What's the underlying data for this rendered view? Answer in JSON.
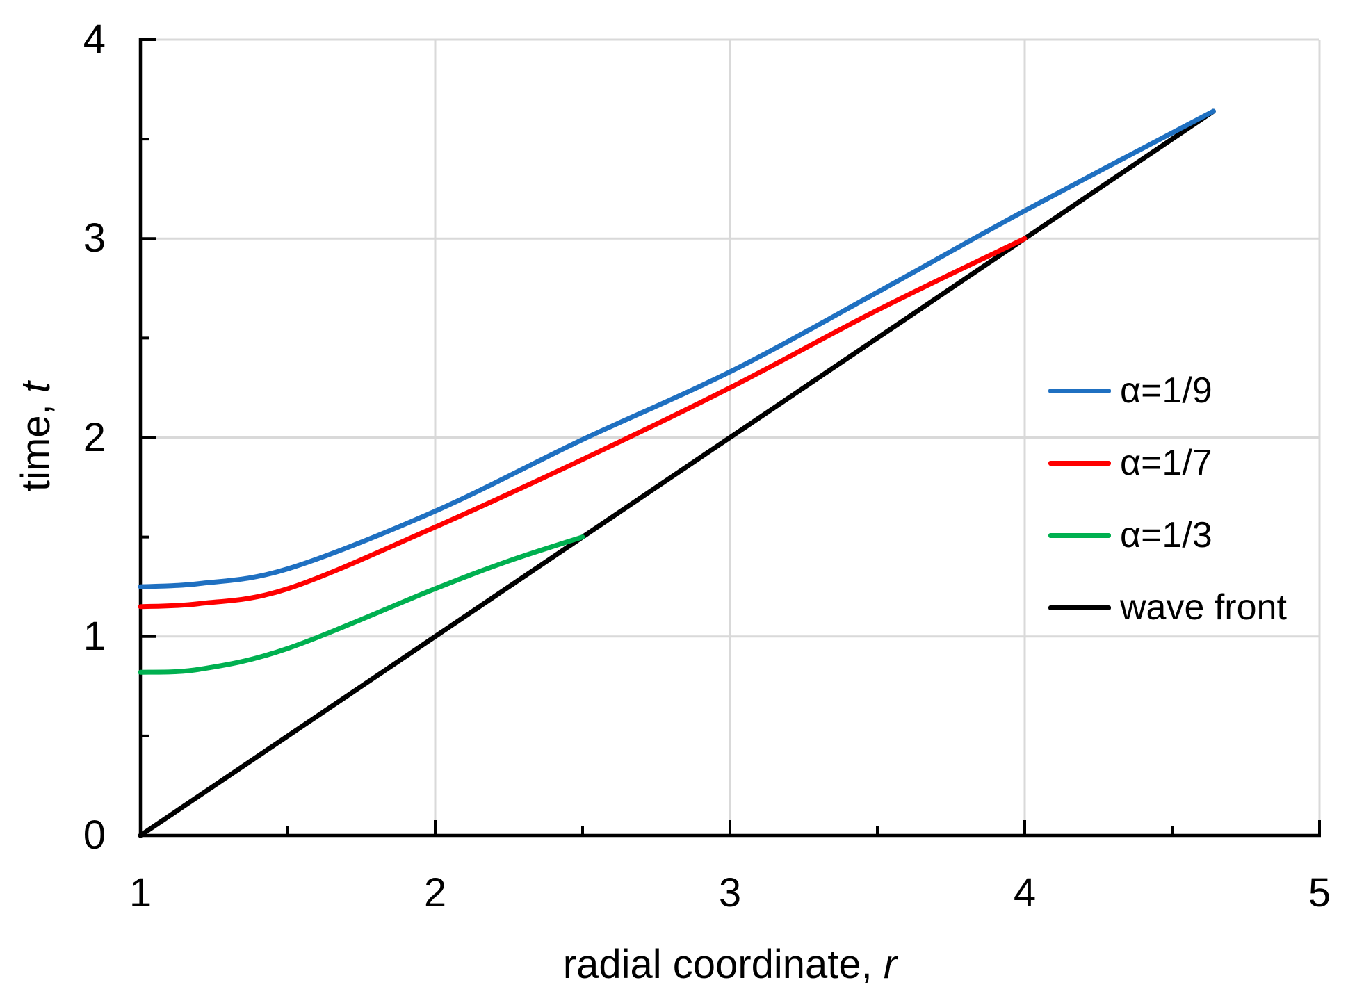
{
  "chart_data": {
    "type": "line",
    "title": "",
    "xlabel": {
      "text": "radial coordinate,",
      "symbol": "r"
    },
    "ylabel": {
      "text": "time,",
      "symbol": "t"
    },
    "x_axis": {
      "range": [
        1,
        5
      ],
      "major_ticks": [
        1,
        2,
        3,
        4,
        5
      ],
      "tick_labels": [
        "1",
        "2",
        "3",
        "4",
        "5"
      ],
      "minor_ticks": [
        1.5,
        2.5,
        3.5,
        4.5
      ]
    },
    "y_axis": {
      "range": [
        0,
        4
      ],
      "major_ticks": [
        0,
        1,
        2,
        3,
        4
      ],
      "tick_labels": [
        "0",
        "1",
        "2",
        "3",
        "4"
      ],
      "minor_ticks": [
        0.5,
        1.5,
        2.5,
        3.5
      ]
    },
    "grid": {
      "show": true,
      "color": "#D9D9D9"
    },
    "axis_color": "#000000",
    "background_color": "#FFFFFF",
    "legend": {
      "position": "right",
      "items": [
        "α=1/9",
        "α=1/7",
        "α=1/3",
        "wave front"
      ]
    },
    "series": [
      {
        "name": "α=1/9",
        "color": "#1F70C1",
        "points": [
          [
            1,
            1.25
          ],
          [
            1.2,
            1.266
          ],
          [
            1.5,
            1.34
          ],
          [
            2,
            1.63
          ],
          [
            2.5,
            1.99
          ],
          [
            3,
            2.33
          ],
          [
            3.5,
            2.73
          ],
          [
            4,
            3.14
          ],
          [
            4.64,
            3.64
          ]
        ]
      },
      {
        "name": "α=1/7",
        "color": "#FF0000",
        "points": [
          [
            1,
            1.15
          ],
          [
            1.2,
            1.165
          ],
          [
            1.5,
            1.24
          ],
          [
            2,
            1.55
          ],
          [
            2.5,
            1.89
          ],
          [
            3,
            2.25
          ],
          [
            3.5,
            2.64
          ],
          [
            4,
            3.0
          ]
        ]
      },
      {
        "name": "α=1/3",
        "color": "#00B050",
        "points": [
          [
            1,
            0.82
          ],
          [
            1.2,
            0.835
          ],
          [
            1.5,
            0.94
          ],
          [
            2,
            1.24
          ],
          [
            2.25,
            1.38
          ],
          [
            2.5,
            1.5
          ]
        ]
      },
      {
        "name": "wave front",
        "color": "#000000",
        "points": [
          [
            1,
            0
          ],
          [
            4.64,
            3.64
          ]
        ]
      }
    ]
  }
}
